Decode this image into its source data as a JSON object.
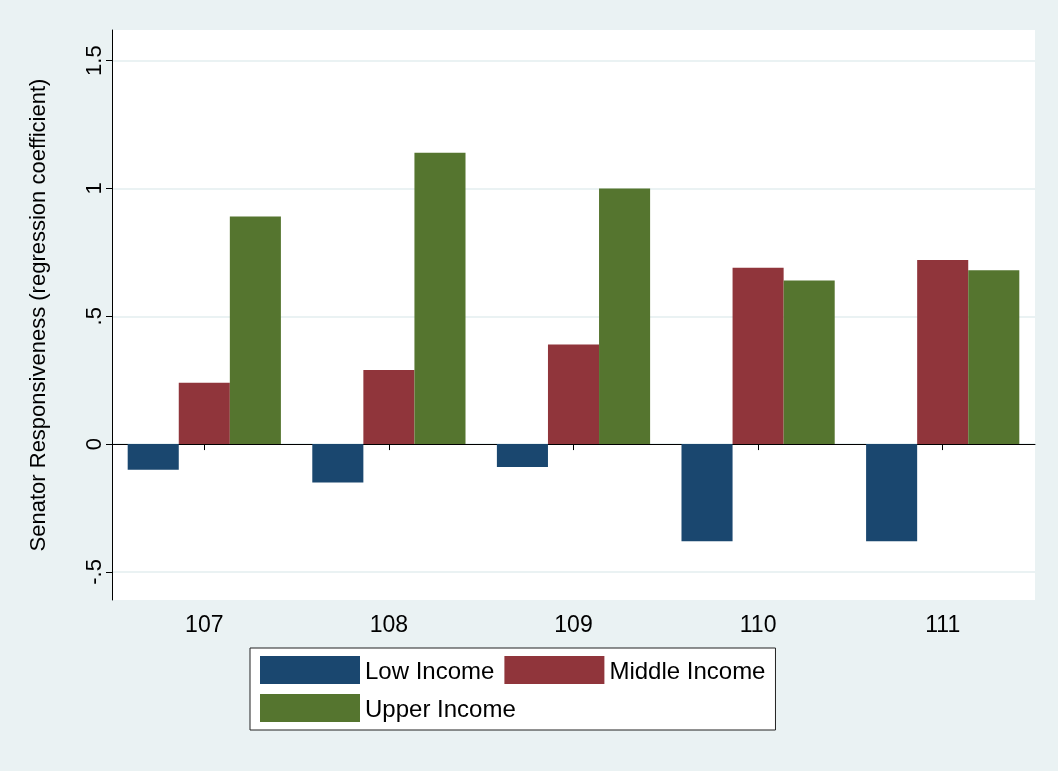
{
  "chart_data": {
    "type": "bar",
    "ylabel": "Senator Responsiveness (regression coefficient)",
    "categories": [
      "107",
      "108",
      "109",
      "110",
      "111"
    ],
    "series": [
      {
        "name": "Low Income",
        "color": "#1a476f",
        "values": [
          -0.1,
          -0.15,
          -0.09,
          -0.38,
          -0.38
        ]
      },
      {
        "name": "Middle Income",
        "color": "#90353b",
        "values": [
          0.24,
          0.29,
          0.39,
          0.69,
          0.72
        ]
      },
      {
        "name": "Upper Income",
        "color": "#55752f",
        "values": [
          0.89,
          1.14,
          1.0,
          0.64,
          0.68
        ]
      }
    ],
    "ylim": [
      -0.61,
      1.62
    ],
    "yticks": [
      {
        "value": -0.5,
        "label": "-.5"
      },
      0,
      {
        "value": 0.5,
        "label": ".5"
      },
      1,
      1.5
    ],
    "grid": "y",
    "legend": "bottom"
  }
}
